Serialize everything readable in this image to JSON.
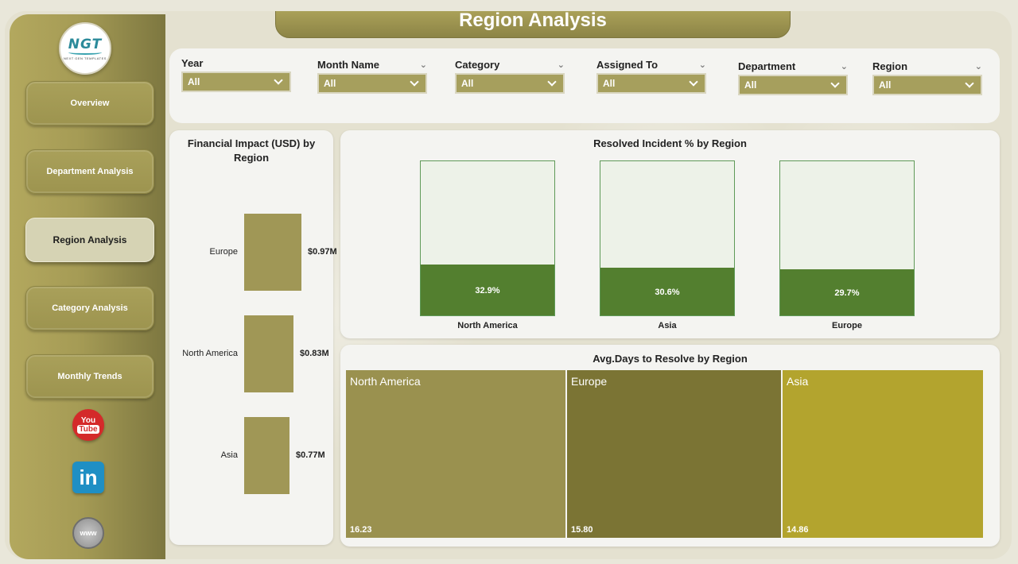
{
  "title": "Region Analysis",
  "logo": {
    "text": "NGT",
    "subtext": "NEXT GEN TEMPLATES"
  },
  "nav": [
    {
      "label": "Overview",
      "active": false
    },
    {
      "label": "Department Analysis",
      "active": false
    },
    {
      "label": "Region Analysis",
      "active": true
    },
    {
      "label": "Category Analysis",
      "active": false
    },
    {
      "label": "Monthly Trends",
      "active": false
    }
  ],
  "social": {
    "youtube_top": "You",
    "youtube_bottom": "Tube",
    "linkedin": "in",
    "web": "www"
  },
  "filters": [
    {
      "label": "Year",
      "value": "All"
    },
    {
      "label": "Month Name",
      "value": "All"
    },
    {
      "label": "Category",
      "value": "All"
    },
    {
      "label": "Assigned To",
      "value": "All"
    },
    {
      "label": "Department",
      "value": "All"
    },
    {
      "label": "Region",
      "value": "All"
    }
  ],
  "colors": {
    "accent": "#a69f5d",
    "sidebar_dark": "#7d7740",
    "resolved_fill": "#537f2f",
    "treemap_north_america": "#9a914f",
    "treemap_europe": "#7b7434",
    "treemap_asia": "#b3a42e"
  },
  "chart_data": [
    {
      "type": "bar",
      "title": "Financial Impact (USD) by Region",
      "categories": [
        "Europe",
        "North America",
        "Asia"
      ],
      "values": [
        0.97,
        0.83,
        0.77
      ],
      "value_labels": [
        "$0.97M",
        "$0.83M",
        "$0.77M"
      ]
    },
    {
      "type": "bar",
      "title": "Resolved Incident % by Region",
      "categories": [
        "North America",
        "Asia",
        "Europe"
      ],
      "values": [
        32.9,
        30.6,
        29.7
      ],
      "value_labels": [
        "32.9%",
        "30.6%",
        "29.7%"
      ],
      "ylim": [
        0,
        100
      ]
    },
    {
      "type": "treemap",
      "title": "Avg.Days to Resolve by Region",
      "categories": [
        "North America",
        "Europe",
        "Asia"
      ],
      "values": [
        16.23,
        15.8,
        14.86
      ],
      "value_labels": [
        "16.23",
        "15.80",
        "14.86"
      ]
    }
  ]
}
